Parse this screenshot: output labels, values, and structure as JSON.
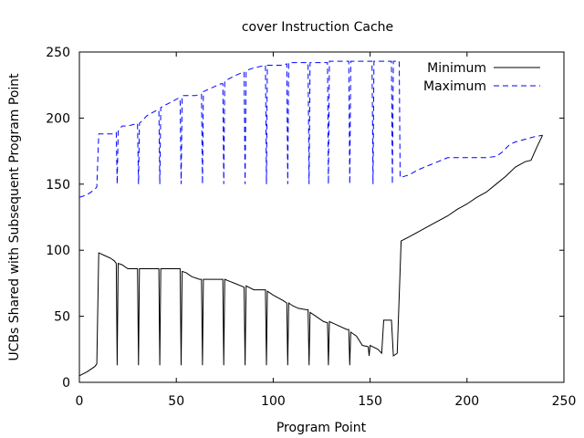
{
  "chart_data": {
    "type": "line",
    "title": "cover Instruction Cache",
    "xlabel": "Program Point",
    "ylabel": "UCBs Shared with Subsequent Program Point",
    "xlim": [
      0,
      250
    ],
    "ylim": [
      0,
      250
    ],
    "xticks": [
      0,
      50,
      100,
      150,
      200,
      250
    ],
    "yticks": [
      0,
      50,
      100,
      150,
      200,
      250
    ],
    "grid": false,
    "legend_position": "top-right",
    "series": [
      {
        "name": "Minimum",
        "color": "#000000",
        "dash": "solid",
        "points": [
          [
            0,
            5
          ],
          [
            4,
            8
          ],
          [
            8,
            12
          ],
          [
            9,
            14
          ],
          [
            10,
            98
          ],
          [
            13,
            96
          ],
          [
            16,
            94
          ],
          [
            18,
            92
          ],
          [
            19,
            90
          ],
          [
            19.5,
            13
          ],
          [
            20,
            90
          ],
          [
            22,
            89
          ],
          [
            25,
            86
          ],
          [
            30,
            86
          ],
          [
            30.5,
            13
          ],
          [
            31,
            86
          ],
          [
            41,
            86
          ],
          [
            41.5,
            13
          ],
          [
            42,
            86
          ],
          [
            51,
            86
          ],
          [
            52,
            86
          ],
          [
            52.5,
            13
          ],
          [
            53,
            84
          ],
          [
            55,
            83
          ],
          [
            58,
            80
          ],
          [
            62,
            78
          ],
          [
            63,
            78
          ],
          [
            63.5,
            13
          ],
          [
            64,
            78
          ],
          [
            73,
            78
          ],
          [
            74,
            78
          ],
          [
            74.5,
            13
          ],
          [
            75,
            78
          ],
          [
            80,
            75
          ],
          [
            85,
            72
          ],
          [
            85.5,
            13
          ],
          [
            86,
            73
          ],
          [
            90,
            70
          ],
          [
            96,
            70
          ],
          [
            96.5,
            13
          ],
          [
            97,
            69
          ],
          [
            100,
            66
          ],
          [
            105,
            62
          ],
          [
            107,
            60
          ],
          [
            107.5,
            13
          ],
          [
            108,
            60
          ],
          [
            110,
            58
          ],
          [
            113,
            56
          ],
          [
            117,
            55
          ],
          [
            118,
            55
          ],
          [
            118.5,
            13
          ],
          [
            119,
            53
          ],
          [
            122,
            50
          ],
          [
            126,
            46
          ],
          [
            128,
            45
          ],
          [
            128.5,
            13
          ],
          [
            129,
            46
          ],
          [
            132,
            44
          ],
          [
            138,
            40
          ],
          [
            139,
            40
          ],
          [
            139.5,
            13
          ],
          [
            140,
            38
          ],
          [
            143,
            35
          ],
          [
            146,
            28
          ],
          [
            149,
            27
          ],
          [
            149.5,
            20
          ],
          [
            150,
            28
          ],
          [
            154,
            25
          ],
          [
            156,
            22
          ],
          [
            157,
            47
          ],
          [
            161,
            47
          ],
          [
            162,
            20
          ],
          [
            164,
            22
          ],
          [
            166,
            107
          ],
          [
            170,
            110
          ],
          [
            175,
            114
          ],
          [
            180,
            118
          ],
          [
            185,
            122
          ],
          [
            190,
            126
          ],
          [
            195,
            131
          ],
          [
            200,
            135
          ],
          [
            205,
            140
          ],
          [
            210,
            144
          ],
          [
            215,
            150
          ],
          [
            220,
            156
          ],
          [
            225,
            163
          ],
          [
            230,
            167
          ],
          [
            233,
            168
          ],
          [
            236,
            178
          ],
          [
            239,
            187
          ]
        ]
      },
      {
        "name": "Maximum",
        "color": "#0000ff",
        "dash": "dashed",
        "points": [
          [
            0,
            140
          ],
          [
            4,
            142
          ],
          [
            8,
            146
          ],
          [
            9,
            148
          ],
          [
            10,
            188
          ],
          [
            18,
            188
          ],
          [
            19,
            189
          ],
          [
            19.5,
            150
          ],
          [
            20,
            190
          ],
          [
            22,
            194
          ],
          [
            25,
            194
          ],
          [
            30,
            196
          ],
          [
            30.5,
            150
          ],
          [
            31,
            196
          ],
          [
            35,
            202
          ],
          [
            40,
            206
          ],
          [
            41,
            206
          ],
          [
            41.5,
            150
          ],
          [
            42,
            208
          ],
          [
            51,
            215
          ],
          [
            52,
            215
          ],
          [
            52.5,
            150
          ],
          [
            53,
            217
          ],
          [
            60,
            217
          ],
          [
            62,
            218
          ],
          [
            63,
            218
          ],
          [
            63.5,
            150
          ],
          [
            64,
            220
          ],
          [
            70,
            224
          ],
          [
            73,
            226
          ],
          [
            74,
            226
          ],
          [
            74.5,
            150
          ],
          [
            75,
            228
          ],
          [
            80,
            232
          ],
          [
            85,
            235
          ],
          [
            85.5,
            150
          ],
          [
            86,
            236
          ],
          [
            90,
            238
          ],
          [
            96,
            240
          ],
          [
            96.5,
            150
          ],
          [
            97,
            240
          ],
          [
            105,
            240
          ],
          [
            107,
            241
          ],
          [
            107.5,
            150
          ],
          [
            108,
            242
          ],
          [
            115,
            242
          ],
          [
            118,
            242
          ],
          [
            118.5,
            150
          ],
          [
            119,
            242
          ],
          [
            128,
            242
          ],
          [
            128.5,
            150
          ],
          [
            129,
            243
          ],
          [
            138,
            243
          ],
          [
            139,
            243
          ],
          [
            139.5,
            150
          ],
          [
            140,
            243
          ],
          [
            150,
            243
          ],
          [
            151,
            243
          ],
          [
            151.5,
            150
          ],
          [
            152,
            243
          ],
          [
            160,
            243
          ],
          [
            161,
            243
          ],
          [
            161.5,
            150
          ],
          [
            162,
            243
          ],
          [
            164,
            243
          ],
          [
            165,
            243
          ],
          [
            165.5,
            155
          ],
          [
            170,
            157
          ],
          [
            175,
            161
          ],
          [
            180,
            164
          ],
          [
            185,
            167
          ],
          [
            190,
            170
          ],
          [
            200,
            170
          ],
          [
            210,
            170
          ],
          [
            215,
            171
          ],
          [
            218,
            174
          ],
          [
            222,
            180
          ],
          [
            225,
            182
          ],
          [
            230,
            184
          ],
          [
            235,
            186
          ],
          [
            239,
            187
          ]
        ]
      }
    ]
  }
}
